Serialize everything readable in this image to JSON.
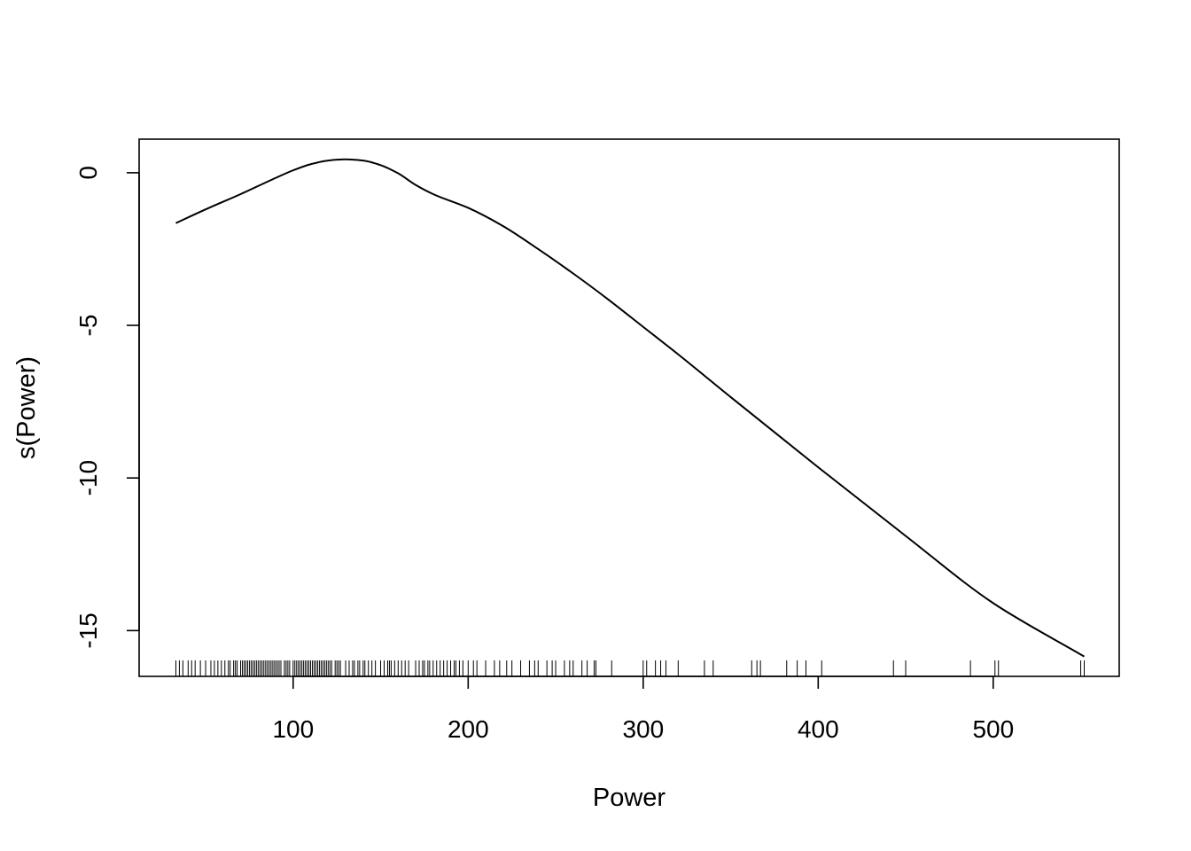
{
  "chart_data": {
    "type": "line",
    "title": "",
    "xlabel": "Power",
    "ylabel": "s(Power)",
    "xlim": [
      12,
      572
    ],
    "ylim": [
      -16.5,
      1.1
    ],
    "grid": false,
    "legend": "none",
    "x_ticks": [
      100,
      200,
      300,
      400,
      500
    ],
    "x_tick_labels": [
      "100",
      "200",
      "300",
      "400",
      "500"
    ],
    "y_ticks": [
      0,
      -5,
      -10,
      -15
    ],
    "y_tick_labels": [
      "0",
      "-5",
      "-10",
      "-15"
    ],
    "series": [
      {
        "x": [
          33,
          50,
          70,
          90,
          100,
          110,
          120,
          130,
          140,
          150,
          160,
          170,
          180,
          200,
          220,
          240,
          260,
          280,
          300,
          320,
          350,
          400,
          450,
          500,
          552
        ],
        "y": [
          -1.65,
          -1.2,
          -0.7,
          -0.17,
          0.08,
          0.28,
          0.4,
          0.44,
          0.4,
          0.25,
          -0.02,
          -0.4,
          -0.7,
          -1.15,
          -1.75,
          -2.5,
          -3.3,
          -4.15,
          -5.05,
          -5.95,
          -7.35,
          -9.65,
          -11.9,
          -14.1,
          -15.85
        ]
      }
    ],
    "rug": [
      33,
      35,
      37,
      40,
      42,
      44,
      47,
      50,
      53,
      55,
      57,
      59,
      61,
      63,
      64,
      66,
      67,
      68,
      70,
      71,
      72,
      73,
      74,
      75,
      76,
      77,
      78,
      79,
      80,
      81,
      82,
      83,
      84,
      85,
      86,
      87,
      88,
      89,
      90,
      91,
      92,
      93,
      95,
      96,
      97,
      98,
      100,
      101,
      102,
      103,
      104,
      105,
      106,
      107,
      108,
      109,
      110,
      111,
      112,
      113,
      114,
      115,
      116,
      117,
      118,
      119,
      120,
      121,
      122,
      124,
      125,
      126,
      127,
      130,
      132,
      134,
      135,
      137,
      138,
      140,
      141,
      143,
      145,
      147,
      150,
      152,
      154,
      155,
      156,
      158,
      160,
      162,
      164,
      166,
      170,
      172,
      174,
      175,
      177,
      178,
      180,
      182,
      184,
      186,
      188,
      190,
      192,
      193,
      195,
      197,
      200,
      203,
      205,
      210,
      215,
      218,
      222,
      225,
      230,
      235,
      238,
      240,
      245,
      248,
      250,
      255,
      258,
      260,
      265,
      268,
      272,
      273,
      282,
      300,
      302,
      307,
      310,
      313,
      320,
      335,
      340,
      362,
      365,
      367,
      382,
      388,
      393,
      402,
      443,
      450,
      487,
      501,
      503,
      550,
      552
    ],
    "colors": {
      "line": "#000000",
      "background": "#ffffff"
    }
  }
}
